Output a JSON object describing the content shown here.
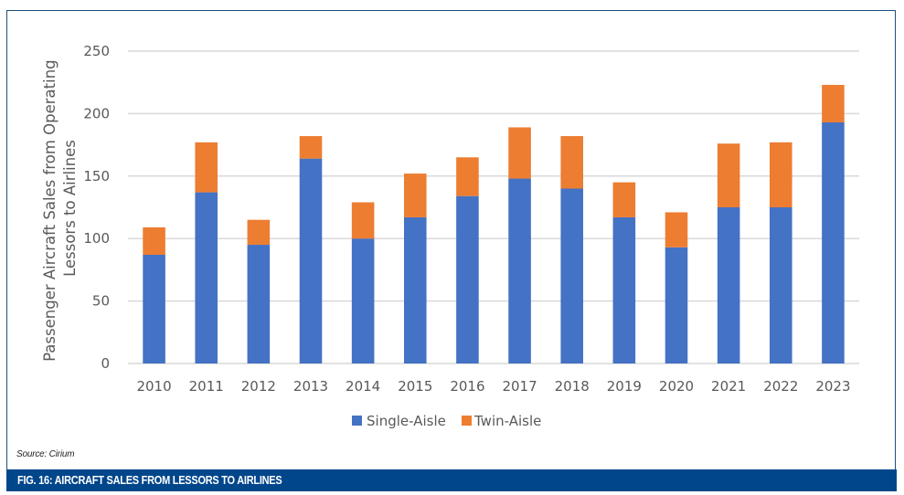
{
  "figure": {
    "caption": "FIG. 16: AIRCRAFT SALES FROM LESSORS TO AIRLINES",
    "source": "Source: Cirium"
  },
  "colors": {
    "single_aisle": "#4472c4",
    "twin_aisle": "#ed7d31",
    "gridline": "#d9d9d9",
    "frame": "#1f4e79",
    "footer": "#00468b"
  },
  "chart_data": {
    "type": "bar",
    "stacked": true,
    "title": "",
    "xlabel": "",
    "ylabel": "Passenger Aircraft Sales from Operating Lessors to Airlines",
    "ylabel_lines": [
      "Passenger Aircraft Sales from Operating",
      "Lessors to Airlines"
    ],
    "ylim": [
      0,
      250
    ],
    "yticks": [
      0,
      50,
      100,
      150,
      200,
      250
    ],
    "grid": true,
    "legend_position": "bottom",
    "categories": [
      "2010",
      "2011",
      "2012",
      "2013",
      "2014",
      "2015",
      "2016",
      "2017",
      "2018",
      "2019",
      "2020",
      "2021",
      "2022",
      "2023"
    ],
    "series": [
      {
        "name": "Single-Aisle",
        "color": "#4472c4",
        "values": [
          87,
          137,
          95,
          164,
          100,
          117,
          134,
          148,
          140,
          117,
          93,
          125,
          125,
          193
        ]
      },
      {
        "name": "Twin-Aisle",
        "color": "#ed7d31",
        "values": [
          22,
          40,
          20,
          18,
          29,
          35,
          31,
          41,
          42,
          28,
          28,
          51,
          52,
          30
        ]
      }
    ]
  }
}
